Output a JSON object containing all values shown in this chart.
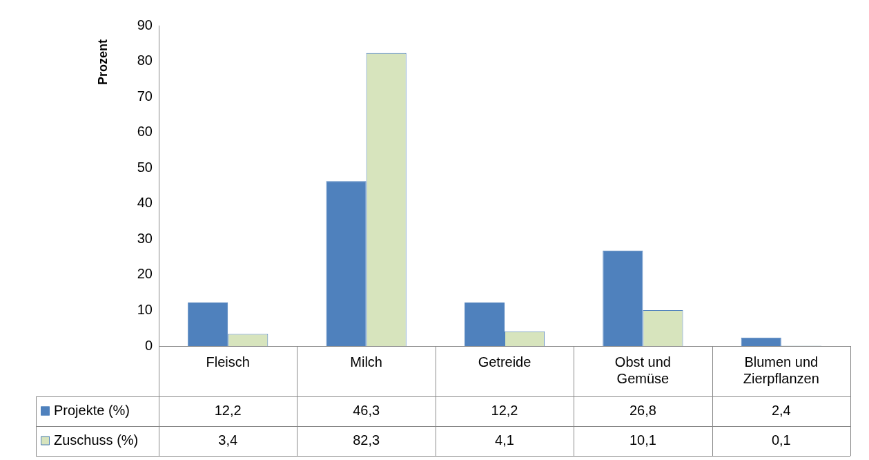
{
  "chart_data": {
    "type": "bar",
    "ylabel": "Prozent",
    "categories": [
      "Fleisch",
      "Milch",
      "Getreide",
      "Obst und Gemüse",
      "Blumen und Zierpflanzen"
    ],
    "series": [
      {
        "name": "Projekte (%)",
        "color": "#4f81bd",
        "values": [
          12.2,
          46.3,
          12.2,
          26.8,
          2.4
        ],
        "value_labels": [
          "12,2",
          "46,3",
          "12,2",
          "26,8",
          "2,4"
        ]
      },
      {
        "name": "Zuschuss (%)",
        "color": "#d7e4bd",
        "values": [
          3.4,
          82.3,
          4.1,
          10.1,
          0.1
        ],
        "value_labels": [
          "3,4",
          "82,3",
          "4,1",
          "10,1",
          "0,1"
        ]
      }
    ],
    "ylim": [
      0,
      90
    ],
    "yticks": [
      0,
      10,
      20,
      30,
      40,
      50,
      60,
      70,
      80,
      90
    ],
    "grid": false,
    "legend": "bottom"
  }
}
